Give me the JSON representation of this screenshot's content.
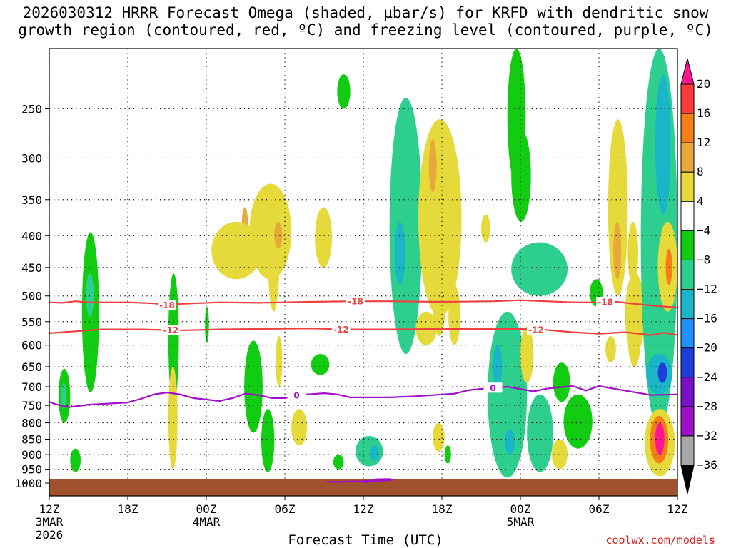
{
  "title": {
    "line1": "2026030312 HRRR Forecast Omega (shaded, µbar/s) for KRFD with dendritic snow",
    "line2": "growth region (contoured, red, ºC) and freezing level (contoured, purple, ºC)"
  },
  "credit": "coolwx.com/models",
  "chart_data": {
    "type": "heatmap",
    "title": "2026030312 HRRR Forecast Omega (shaded, µbar/s) for KRFD with dendritic snow growth region (contoured, red, ºC) and freezing level (contoured, purple, ºC)",
    "xlabel": "Forecast Time (UTC)",
    "ylabel": "",
    "x_unit": "forecast hour",
    "xlim": [
      0,
      48
    ],
    "ylim_pressure_hPa": [
      1000,
      200
    ],
    "y_scale": "log",
    "y_ticks": [
      250,
      300,
      350,
      400,
      450,
      500,
      550,
      600,
      650,
      700,
      750,
      800,
      850,
      900,
      950,
      1000
    ],
    "x_ticks": [
      {
        "hour": 0,
        "label": "12Z",
        "date1": "3MAR",
        "date2": "2026"
      },
      {
        "hour": 6,
        "label": "18Z",
        "date1": "",
        "date2": ""
      },
      {
        "hour": 12,
        "label": "00Z",
        "date1": "4MAR",
        "date2": ""
      },
      {
        "hour": 18,
        "label": "06Z",
        "date1": "",
        "date2": ""
      },
      {
        "hour": 24,
        "label": "12Z",
        "date1": "",
        "date2": ""
      },
      {
        "hour": 30,
        "label": "18Z",
        "date1": "",
        "date2": ""
      },
      {
        "hour": 36,
        "label": "00Z",
        "date1": "5MAR",
        "date2": ""
      },
      {
        "hour": 42,
        "label": "06Z",
        "date1": "",
        "date2": ""
      },
      {
        "hour": 48,
        "label": "12Z",
        "date1": "",
        "date2": ""
      }
    ],
    "colorbar": {
      "labels": [
        "20",
        "16",
        "12",
        "8",
        "4",
        "−4",
        "−8",
        "−12",
        "−16",
        "−20",
        "−24",
        "−28",
        "−32",
        "−36"
      ],
      "colors": [
        "#ff1493",
        "#ff3b3b",
        "#f57f17",
        "#e8a93a",
        "#e6d93a",
        "#ffffff",
        "#11cc11",
        "#2ecf8e",
        "#1ab6c8",
        "#1e90ff",
        "#1f3fdc",
        "#7a10c8",
        "#a010c8",
        "#a8a8a8",
        "#000000"
      ]
    },
    "contours": [
      {
        "name": "dendritic-top",
        "color": "#ee4040",
        "label": "-18",
        "points": [
          [
            0,
            512
          ],
          [
            1,
            513
          ],
          [
            2,
            510
          ],
          [
            3,
            512
          ],
          [
            6,
            512
          ],
          [
            8,
            514
          ],
          [
            9,
            517
          ],
          [
            10,
            515
          ],
          [
            13,
            512
          ],
          [
            16,
            513
          ],
          [
            20,
            511
          ],
          [
            23,
            510
          ],
          [
            26,
            510
          ],
          [
            30,
            511
          ],
          [
            34,
            510
          ],
          [
            36,
            508
          ],
          [
            38,
            510
          ],
          [
            40,
            512
          ],
          [
            42,
            512
          ],
          [
            43,
            510
          ],
          [
            44,
            513
          ],
          [
            46,
            518
          ],
          [
            48,
            522
          ]
        ],
        "label_hours": [
          9,
          23.4,
          42.5
        ]
      },
      {
        "name": "dendritic-bottom",
        "color": "#ee4040",
        "label": "-12",
        "points": [
          [
            0,
            574
          ],
          [
            2,
            570
          ],
          [
            4,
            566
          ],
          [
            7,
            566
          ],
          [
            10,
            568
          ],
          [
            13,
            566
          ],
          [
            16,
            565
          ],
          [
            20,
            564
          ],
          [
            23,
            566
          ],
          [
            26,
            566
          ],
          [
            30,
            565
          ],
          [
            34,
            565
          ],
          [
            36,
            565
          ],
          [
            38,
            567
          ],
          [
            40,
            572
          ],
          [
            42,
            575
          ],
          [
            44,
            572
          ],
          [
            46,
            578
          ],
          [
            47,
            573
          ],
          [
            48,
            578
          ]
        ],
        "label_hours": [
          9.3,
          22.3,
          37.2
        ]
      },
      {
        "name": "freezing-level",
        "color": "#a010c8",
        "label": "0",
        "points": [
          [
            0,
            740
          ],
          [
            0.5,
            747
          ],
          [
            1.5,
            755
          ],
          [
            3,
            748
          ],
          [
            6,
            742
          ],
          [
            7,
            732
          ],
          [
            8,
            720
          ],
          [
            9,
            715
          ],
          [
            10,
            720
          ],
          [
            11,
            730
          ],
          [
            13,
            738
          ],
          [
            14,
            730
          ],
          [
            15,
            718
          ],
          [
            16,
            722
          ],
          [
            17,
            730
          ],
          [
            18,
            730
          ],
          [
            19,
            722
          ],
          [
            21,
            717
          ],
          [
            22,
            720
          ],
          [
            23,
            728
          ],
          [
            26,
            728
          ],
          [
            28,
            725
          ],
          [
            31,
            718
          ],
          [
            32,
            709
          ],
          [
            34,
            702
          ],
          [
            35,
            700
          ],
          [
            37,
            712
          ],
          [
            38,
            705
          ],
          [
            40,
            698
          ],
          [
            41,
            710
          ],
          [
            42,
            698
          ],
          [
            44,
            710
          ],
          [
            46,
            722
          ],
          [
            48,
            720
          ]
        ],
        "label_hours": [
          18.9,
          33.9
        ]
      },
      {
        "name": "freezing-level-surface",
        "color": "#a010c8",
        "label": "",
        "points": [
          [
            21.2,
            995
          ],
          [
            22.2,
            996
          ],
          [
            23,
            994
          ],
          [
            24,
            993
          ],
          [
            25,
            986
          ],
          [
            26,
            985
          ],
          [
            26.3,
            988
          ],
          [
            25,
            993
          ],
          [
            24,
            997
          ]
        ],
        "label_hours": []
      }
    ],
    "omega_regions": [
      {
        "hours": [
          0.7,
          1.6
        ],
        "p": [
          655,
          800
        ],
        "value": -6
      },
      {
        "hours": [
          0.9,
          1.3
        ],
        "p": [
          690,
          760
        ],
        "value": -10
      },
      {
        "hours": [
          2.5,
          3.8
        ],
        "p": [
          395,
          715
        ],
        "value": -6
      },
      {
        "hours": [
          2.8,
          3.4
        ],
        "p": [
          460,
          540
        ],
        "value": -10
      },
      {
        "hours": [
          1.6,
          2.4
        ],
        "p": [
          880,
          960
        ],
        "value": -6
      },
      {
        "hours": [
          9.1,
          9.9
        ],
        "p": [
          460,
          745
        ],
        "value": -6
      },
      {
        "hours": [
          9.1,
          9.8
        ],
        "p": [
          650,
          950
        ],
        "value": 5
      },
      {
        "hours": [
          11.9,
          12.2
        ],
        "p": [
          520,
          595
        ],
        "value": -6
      },
      {
        "hours": [
          16.7,
          17.6
        ],
        "p": [
          340,
          530
        ],
        "value": 5
      },
      {
        "hours": [
          14.7,
          15.2
        ],
        "p": [
          360,
          420
        ],
        "value": 8
      },
      {
        "hours": [
          12.4,
          16.2
        ],
        "p": [
          380,
          470
        ],
        "value": 4
      },
      {
        "hours": [
          15.3,
          18.5
        ],
        "p": [
          330,
          470
        ],
        "value": 4
      },
      {
        "hours": [
          17.2,
          17.8
        ],
        "p": [
          380,
          420
        ],
        "value": 9
      },
      {
        "hours": [
          14.9,
          16.3
        ],
        "p": [
          590,
          830
        ],
        "value": -6
      },
      {
        "hours": [
          16.2,
          17.2
        ],
        "p": [
          760,
          960
        ],
        "value": -6
      },
      {
        "hours": [
          17.3,
          17.8
        ],
        "p": [
          580,
          700
        ],
        "value": 4
      },
      {
        "hours": [
          18.5,
          19.7
        ],
        "p": [
          760,
          870
        ],
        "value": 5
      },
      {
        "hours": [
          20.3,
          21.6
        ],
        "p": [
          360,
          450
        ],
        "value": 4
      },
      {
        "hours": [
          20.0,
          21.4
        ],
        "p": [
          620,
          670
        ],
        "value": -6
      },
      {
        "hours": [
          22.0,
          23.0
        ],
        "p": [
          220,
          250
        ],
        "value": -6
      },
      {
        "hours": [
          21.7,
          22.5
        ],
        "p": [
          900,
          950
        ],
        "value": -6
      },
      {
        "hours": [
          23.4,
          25.5
        ],
        "p": [
          840,
          940
        ],
        "value": -8
      },
      {
        "hours": [
          24.5,
          25.2
        ],
        "p": [
          870,
          920
        ],
        "value": -12
      },
      {
        "hours": [
          26.0,
          28.5
        ],
        "p": [
          240,
          620
        ],
        "value": -8
      },
      {
        "hours": [
          26.4,
          27.2
        ],
        "p": [
          380,
          480
        ],
        "value": -12
      },
      {
        "hours": [
          28.2,
          31.5
        ],
        "p": [
          260,
          540
        ],
        "value": 5
      },
      {
        "hours": [
          29.0,
          29.6
        ],
        "p": [
          280,
          340
        ],
        "value": 9
      },
      {
        "hours": [
          29.3,
          30.3
        ],
        "p": [
          440,
          580
        ],
        "value": 5
      },
      {
        "hours": [
          30.5,
          31.4
        ],
        "p": [
          480,
          600
        ],
        "value": 4
      },
      {
        "hours": [
          28.0,
          29.6
        ],
        "p": [
          530,
          600
        ],
        "value": 4
      },
      {
        "hours": [
          29.3,
          30.2
        ],
        "p": [
          800,
          890
        ],
        "value": 4
      },
      {
        "hours": [
          30.2,
          30.7
        ],
        "p": [
          870,
          930
        ],
        "value": -6
      },
      {
        "hours": [
          33.0,
          33.7
        ],
        "p": [
          370,
          410
        ],
        "value": 4
      },
      {
        "hours": [
          35.0,
          36.4
        ],
        "p": [
          200,
          330
        ],
        "value": -6
      },
      {
        "hours": [
          35.3,
          36.8
        ],
        "p": [
          270,
          380
        ],
        "value": -6
      },
      {
        "hours": [
          33.5,
          36.5
        ],
        "p": [
          530,
          980
        ],
        "value": -8
      },
      {
        "hours": [
          33.9,
          34.6
        ],
        "p": [
          600,
          700
        ],
        "value": -12
      },
      {
        "hours": [
          34.8,
          35.6
        ],
        "p": [
          820,
          900
        ],
        "value": -12
      },
      {
        "hours": [
          35.3,
          39.6
        ],
        "p": [
          410,
          500
        ],
        "value": -8
      },
      {
        "hours": [
          36.5,
          38.5
        ],
        "p": [
          720,
          960
        ],
        "value": -8
      },
      {
        "hours": [
          37.0,
          38.2
        ],
        "p": [
          860,
          920
        ],
        "value": -10
      },
      {
        "hours": [
          36.0,
          37.0
        ],
        "p": [
          560,
          690
        ],
        "value": 5
      },
      {
        "hours": [
          38.4,
          39.6
        ],
        "p": [
          850,
          950
        ],
        "value": 5
      },
      {
        "hours": [
          38.5,
          39.8
        ],
        "p": [
          640,
          740
        ],
        "value": -6
      },
      {
        "hours": [
          39.3,
          41.5
        ],
        "p": [
          720,
          880
        ],
        "value": -6
      },
      {
        "hours": [
          41.3,
          42.3
        ],
        "p": [
          470,
          520
        ],
        "value": -6
      },
      {
        "hours": [
          42.5,
          43.3
        ],
        "p": [
          580,
          640
        ],
        "value": 4
      },
      {
        "hours": [
          42.7,
          44.2
        ],
        "p": [
          260,
          500
        ],
        "value": 5
      },
      {
        "hours": [
          43.1,
          43.7
        ],
        "p": [
          380,
          470
        ],
        "value": 9
      },
      {
        "hours": [
          44.0,
          45.5
        ],
        "p": [
          460,
          620
        ],
        "value": 5
      },
      {
        "hours": [
          44.2,
          45.0
        ],
        "p": [
          380,
          480
        ],
        "value": 4
      },
      {
        "hours": [
          45.2,
          48.0
        ],
        "p": [
          200,
          820
        ],
        "value": -8
      },
      {
        "hours": [
          46.3,
          47.5
        ],
        "p": [
          220,
          370
        ],
        "value": -12
      },
      {
        "hours": [
          45.6,
          47.6
        ],
        "p": [
          620,
          720
        ],
        "value": -12
      },
      {
        "hours": [
          46.5,
          47.2
        ],
        "p": [
          640,
          690
        ],
        "value": -22
      },
      {
        "hours": [
          44.2,
          45.2
        ],
        "p": [
          520,
          650
        ],
        "value": 5
      },
      {
        "hours": [
          46.5,
          48.0
        ],
        "p": [
          380,
          530
        ],
        "value": 5
      },
      {
        "hours": [
          47.1,
          47.6
        ],
        "p": [
          420,
          480
        ],
        "value": 10
      },
      {
        "hours": [
          45.5,
          47.8
        ],
        "p": [
          760,
          975
        ],
        "value": 5
      },
      {
        "hours": [
          45.9,
          47.3
        ],
        "p": [
          780,
          930
        ],
        "value": 12
      },
      {
        "hours": [
          46.3,
          47.0
        ],
        "p": [
          800,
          900
        ],
        "value": 20
      }
    ]
  }
}
